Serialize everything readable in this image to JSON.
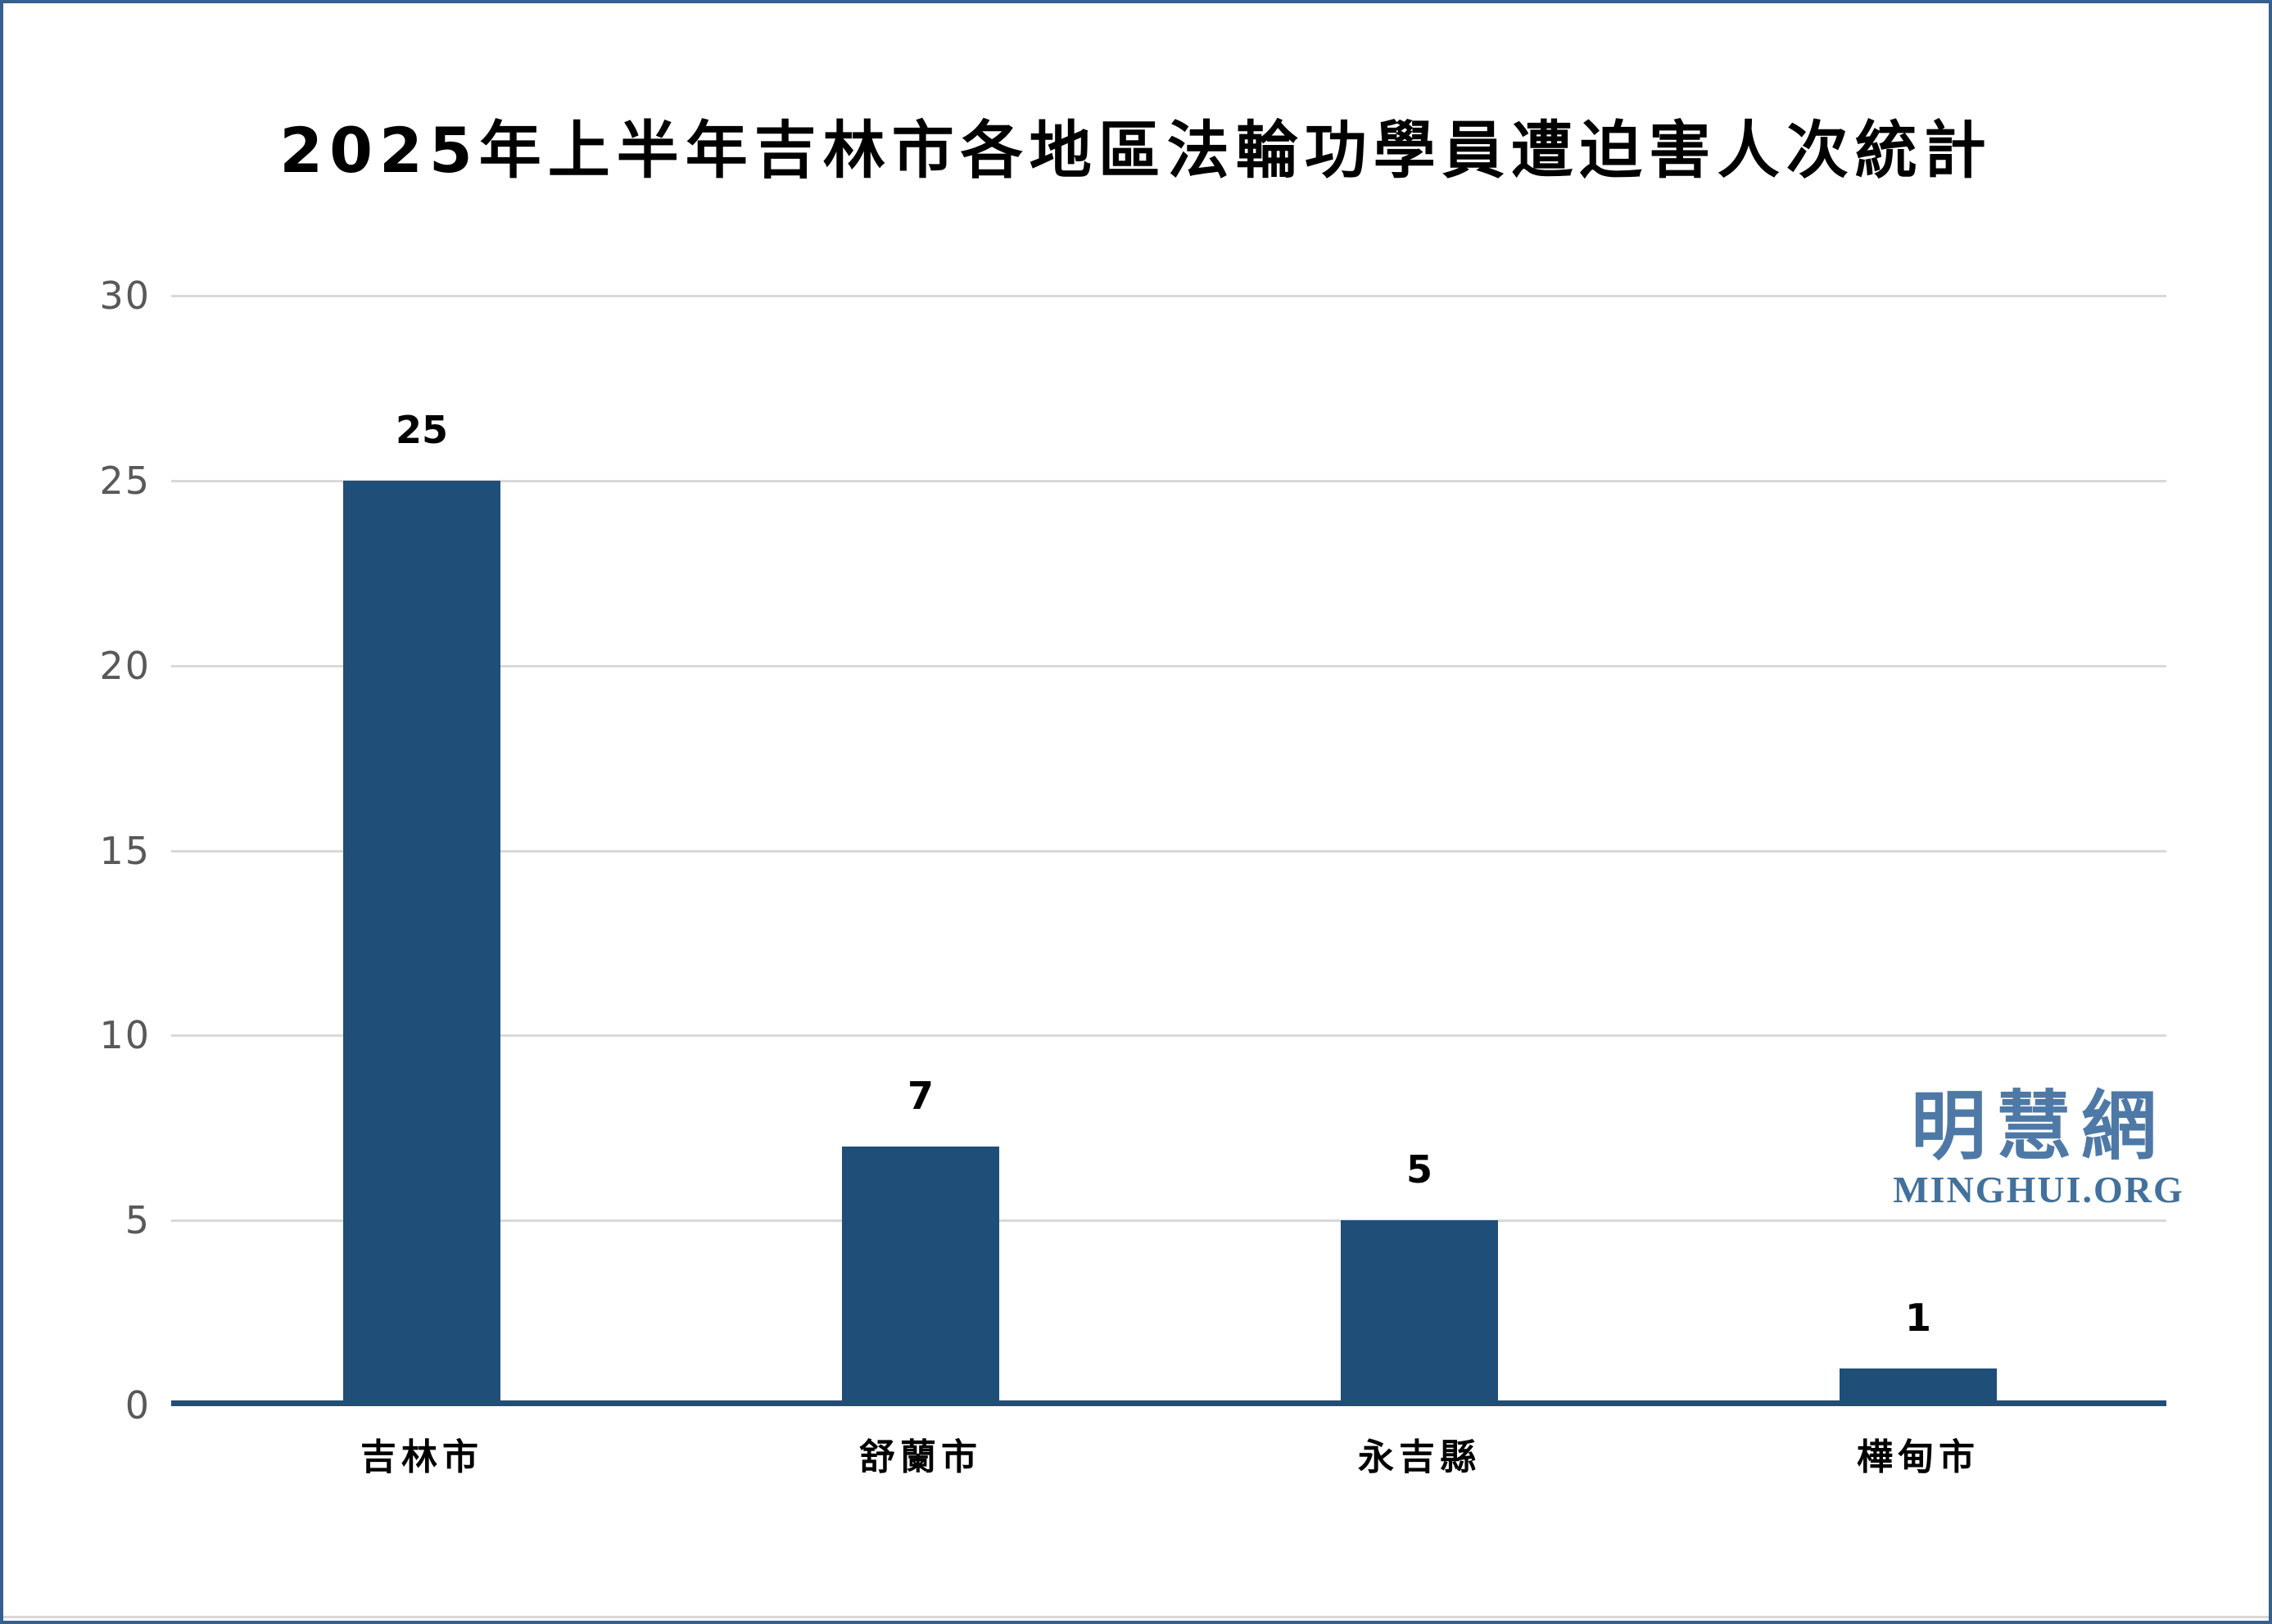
{
  "chart_data": {
    "type": "bar",
    "title": "2025年上半年吉林市各地區法輪功學員遭迫害人次統計",
    "categories": [
      "吉林市",
      "舒蘭市",
      "永吉縣",
      "樺甸市"
    ],
    "values": [
      25,
      7,
      5,
      1
    ],
    "value_labels": [
      "25",
      "7",
      "5",
      "1"
    ],
    "xlabel": "",
    "ylabel": "",
    "ylim": [
      0,
      30
    ],
    "yticks": [
      0,
      5,
      10,
      15,
      20,
      25,
      30
    ],
    "grid": true,
    "legend": false,
    "bar_color": "#1F4E79",
    "axis_line_color": "#1F4E79",
    "gridline_color": "#D9D9D9",
    "tick_label_color": "#595959",
    "value_label_color": "#000000",
    "category_label_color": "#000000"
  },
  "watermark": {
    "chinese": "明慧網",
    "latin": "MINGHUI.ORG",
    "chinese_color": "#4E79A7",
    "latin_color": "#41719C"
  },
  "frame": {
    "border_color": "#35608F"
  }
}
